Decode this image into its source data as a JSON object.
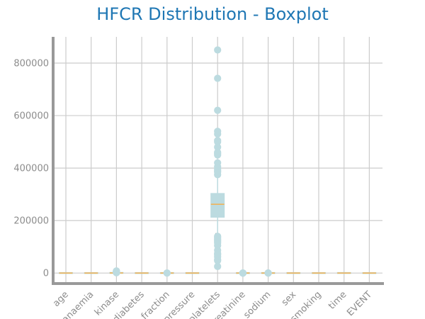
{
  "chart_data": {
    "type": "boxplot",
    "title": "HFCR Distribution - Boxplot",
    "xlabel": "",
    "ylabel": "",
    "ylim": [
      -40000,
      900000
    ],
    "yticks": [
      0,
      200000,
      400000,
      600000,
      800000
    ],
    "ytick_labels": [
      "0",
      "200000",
      "400000",
      "600000",
      "800000"
    ],
    "grid": true,
    "colors": {
      "box": "#bcdbe0",
      "whisker": "#bcdbe0",
      "median": "#f0b45a",
      "flier": "#bcdbe0",
      "grid": "#cccccc",
      "axis": "#999999",
      "title": "#1f77b4",
      "tick": "#8c8c8c"
    },
    "categories": [
      "age",
      "anaemia",
      "creatinine_phosphokinase",
      "diabetes",
      "ejection_fraction",
      "high_blood_pressure",
      "platelets",
      "serum_creatinine",
      "serum_sodium",
      "sex",
      "smoking",
      "time",
      "DEATH_EVENT"
    ],
    "category_labels_visible": [
      "age",
      "anaemia",
      "kinase",
      "diabetes",
      "fraction",
      "pressure",
      "platelets",
      "creatinine",
      "sodium",
      "sex",
      "smoking",
      "time",
      "EVENT"
    ],
    "boxes": [
      {
        "q1": 51,
        "median": 60,
        "q3": 70,
        "whislo": 40,
        "whishi": 95,
        "fliers": []
      },
      {
        "q1": 0,
        "median": 0,
        "q3": 1,
        "whislo": 0,
        "whishi": 1,
        "fliers": []
      },
      {
        "q1": 116,
        "median": 250,
        "q3": 582,
        "whislo": 23,
        "whishi": 1280,
        "fliers": [
          1380,
          1600,
          1820,
          2060,
          2334,
          2413,
          2522,
          2695,
          2794,
          3964,
          4540,
          5209,
          5882,
          7702,
          7861
        ]
      },
      {
        "q1": 0,
        "median": 0,
        "q3": 1,
        "whislo": 0,
        "whishi": 1,
        "fliers": []
      },
      {
        "q1": 30,
        "median": 38,
        "q3": 45,
        "whislo": 14,
        "whishi": 65,
        "fliers": [
          70,
          80
        ]
      },
      {
        "q1": 0,
        "median": 0,
        "q3": 1,
        "whislo": 0,
        "whishi": 1,
        "fliers": []
      },
      {
        "q1": 212500,
        "median": 262000,
        "q3": 303500,
        "whislo": 150000,
        "whishi": 370000,
        "fliers": [
          25100,
          47000,
          51000,
          62000,
          70000,
          75000,
          87000,
          105000,
          115000,
          120000,
          125000,
          130000,
          135000,
          140000,
          375000,
          385000,
          389000,
          395000,
          405000,
          420000,
          450000,
          455000,
          460000,
          480000,
          500000,
          505000,
          530000,
          540000,
          620000,
          742000,
          850000
        ]
      },
      {
        "q1": 0.9,
        "median": 1.1,
        "q3": 1.4,
        "whislo": 0.5,
        "whishi": 2.1,
        "fliers": [
          2.5,
          3.0,
          3.5,
          4.0,
          5.8,
          6.8,
          9.0,
          9.4
        ]
      },
      {
        "q1": 134,
        "median": 137,
        "q3": 140,
        "whislo": 125,
        "whishi": 148,
        "fliers": [
          113,
          116,
          121
        ]
      },
      {
        "q1": 0,
        "median": 1,
        "q3": 1,
        "whislo": 0,
        "whishi": 1,
        "fliers": []
      },
      {
        "q1": 0,
        "median": 0,
        "q3": 1,
        "whislo": 0,
        "whishi": 1,
        "fliers": []
      },
      {
        "q1": 73,
        "median": 115,
        "q3": 203,
        "whislo": 4,
        "whishi": 285,
        "fliers": []
      },
      {
        "q1": 0,
        "median": 0,
        "q3": 1,
        "whislo": 0,
        "whishi": 1,
        "fliers": []
      }
    ]
  }
}
